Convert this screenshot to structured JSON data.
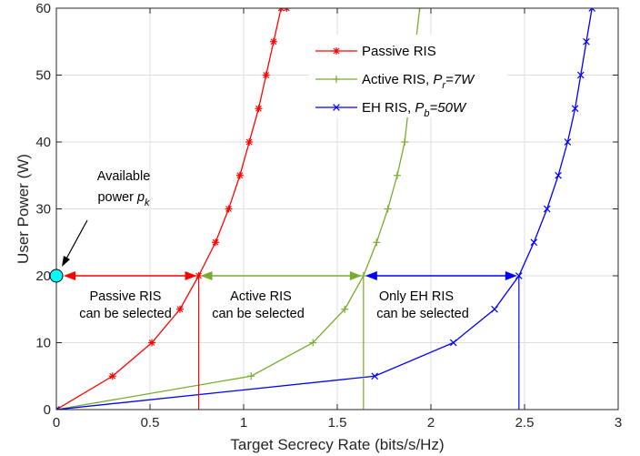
{
  "chart_data": {
    "type": "line",
    "xlabel": "Target Secrecy Rate (bits/s/Hz)",
    "ylabel": "User Power (W)",
    "xlim": [
      0,
      3
    ],
    "ylim": [
      0,
      60
    ],
    "xticks": [
      0,
      0.5,
      1,
      1.5,
      2,
      2.5,
      3
    ],
    "yticks": [
      0,
      10,
      20,
      30,
      40,
      50,
      60
    ],
    "grid": true,
    "legend_position": "top-right",
    "series": [
      {
        "name": "Passive RIS",
        "color": "#ff0000",
        "marker": "asterisk",
        "x": [
          0,
          0.3,
          0.51,
          0.66,
          0.76,
          0.85,
          0.92,
          0.98,
          1.03,
          1.08,
          1.12,
          1.16,
          1.2,
          1.23
        ],
        "y": [
          0,
          5,
          10,
          15,
          20,
          25,
          30,
          35,
          40,
          45,
          50,
          55,
          60,
          60
        ]
      },
      {
        "name": "Active RIS, Pr=7W",
        "color": "#77ac30",
        "marker": "plus",
        "x": [
          0,
          1.04,
          1.37,
          1.54,
          1.64,
          1.71,
          1.77,
          1.82,
          1.86,
          1.9,
          1.94
        ],
        "y": [
          0,
          5,
          10,
          15,
          20,
          25,
          30,
          35,
          40,
          50,
          60
        ]
      },
      {
        "name": "EH RIS, Pb=50W",
        "color": "#0000ff",
        "marker": "cross",
        "x": [
          0,
          1.7,
          2.12,
          2.34,
          2.47,
          2.55,
          2.62,
          2.68,
          2.73,
          2.77,
          2.8,
          2.83,
          2.86
        ],
        "y": [
          0,
          5,
          10,
          15,
          20,
          25,
          30,
          35,
          40,
          45,
          50,
          55,
          60
        ]
      }
    ],
    "legend": [
      {
        "text": "Passive RIS",
        "sub_var": "",
        "sub": "",
        "suffix": ""
      },
      {
        "text": "Active RIS, ",
        "sub_var": "P",
        "sub": "r",
        "suffix": "=7W"
      },
      {
        "text": "EH RIS, ",
        "sub_var": "P",
        "sub": "b",
        "suffix": "=50W"
      }
    ],
    "thresholds": {
      "power": 20,
      "passive_rate": 0.76,
      "active_rate": 1.64,
      "eh_rate": 2.47
    },
    "annotations": {
      "available_line1": "Available",
      "available_line2_text": "power ",
      "available_line2_var": "p",
      "available_line2_sub": "k",
      "passive_line1": "Passive RIS",
      "passive_line2": "can be selected",
      "active_line1": "Active RIS",
      "active_line2": "can be selected",
      "eh_line1": "Only EH RIS",
      "eh_line2": "can be selected"
    },
    "colors": {
      "passive_arrow": "#ff0000",
      "active_arrow": "#77ac30",
      "eh_arrow": "#0000ff",
      "available_dot": "#00ffff"
    }
  }
}
